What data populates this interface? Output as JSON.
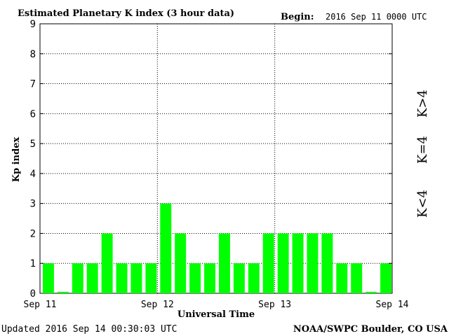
{
  "header": {
    "title": "Estimated Planetary K index (3 hour data)",
    "begin_label": "Begin:",
    "begin_value": "2016 Sep 11 0000 UTC"
  },
  "footer": {
    "updated": "Updated 2016 Sep 14 00:30:03 UTC",
    "credit": "NOAA/SWPC Boulder, CO USA"
  },
  "legend": {
    "gt4": {
      "label": "K>4",
      "color": "#ff2a00"
    },
    "eq4": {
      "label": "K=4",
      "color": "#ffd200"
    },
    "lt4": {
      "label": "K<4",
      "color": "#33ee11"
    }
  },
  "chart_data": {
    "type": "bar",
    "title": "Estimated Planetary K index (3 hour data)",
    "xlabel": "Universal Time",
    "ylabel": "Kp index",
    "ylim": [
      0,
      9
    ],
    "yticks": [
      "0",
      "1",
      "2",
      "3",
      "4",
      "5",
      "6",
      "7",
      "8",
      "9"
    ],
    "xticks": [
      "Sep 11",
      "Sep 12",
      "Sep 13",
      "Sep 14"
    ],
    "grid": true,
    "bar_color": "#00ff00",
    "values": [
      1,
      0.05,
      1,
      1,
      2,
      1,
      1,
      1,
      3,
      2,
      1,
      1,
      2,
      1,
      1,
      2,
      2,
      2,
      2,
      2,
      1,
      1,
      0.05,
      1
    ]
  }
}
